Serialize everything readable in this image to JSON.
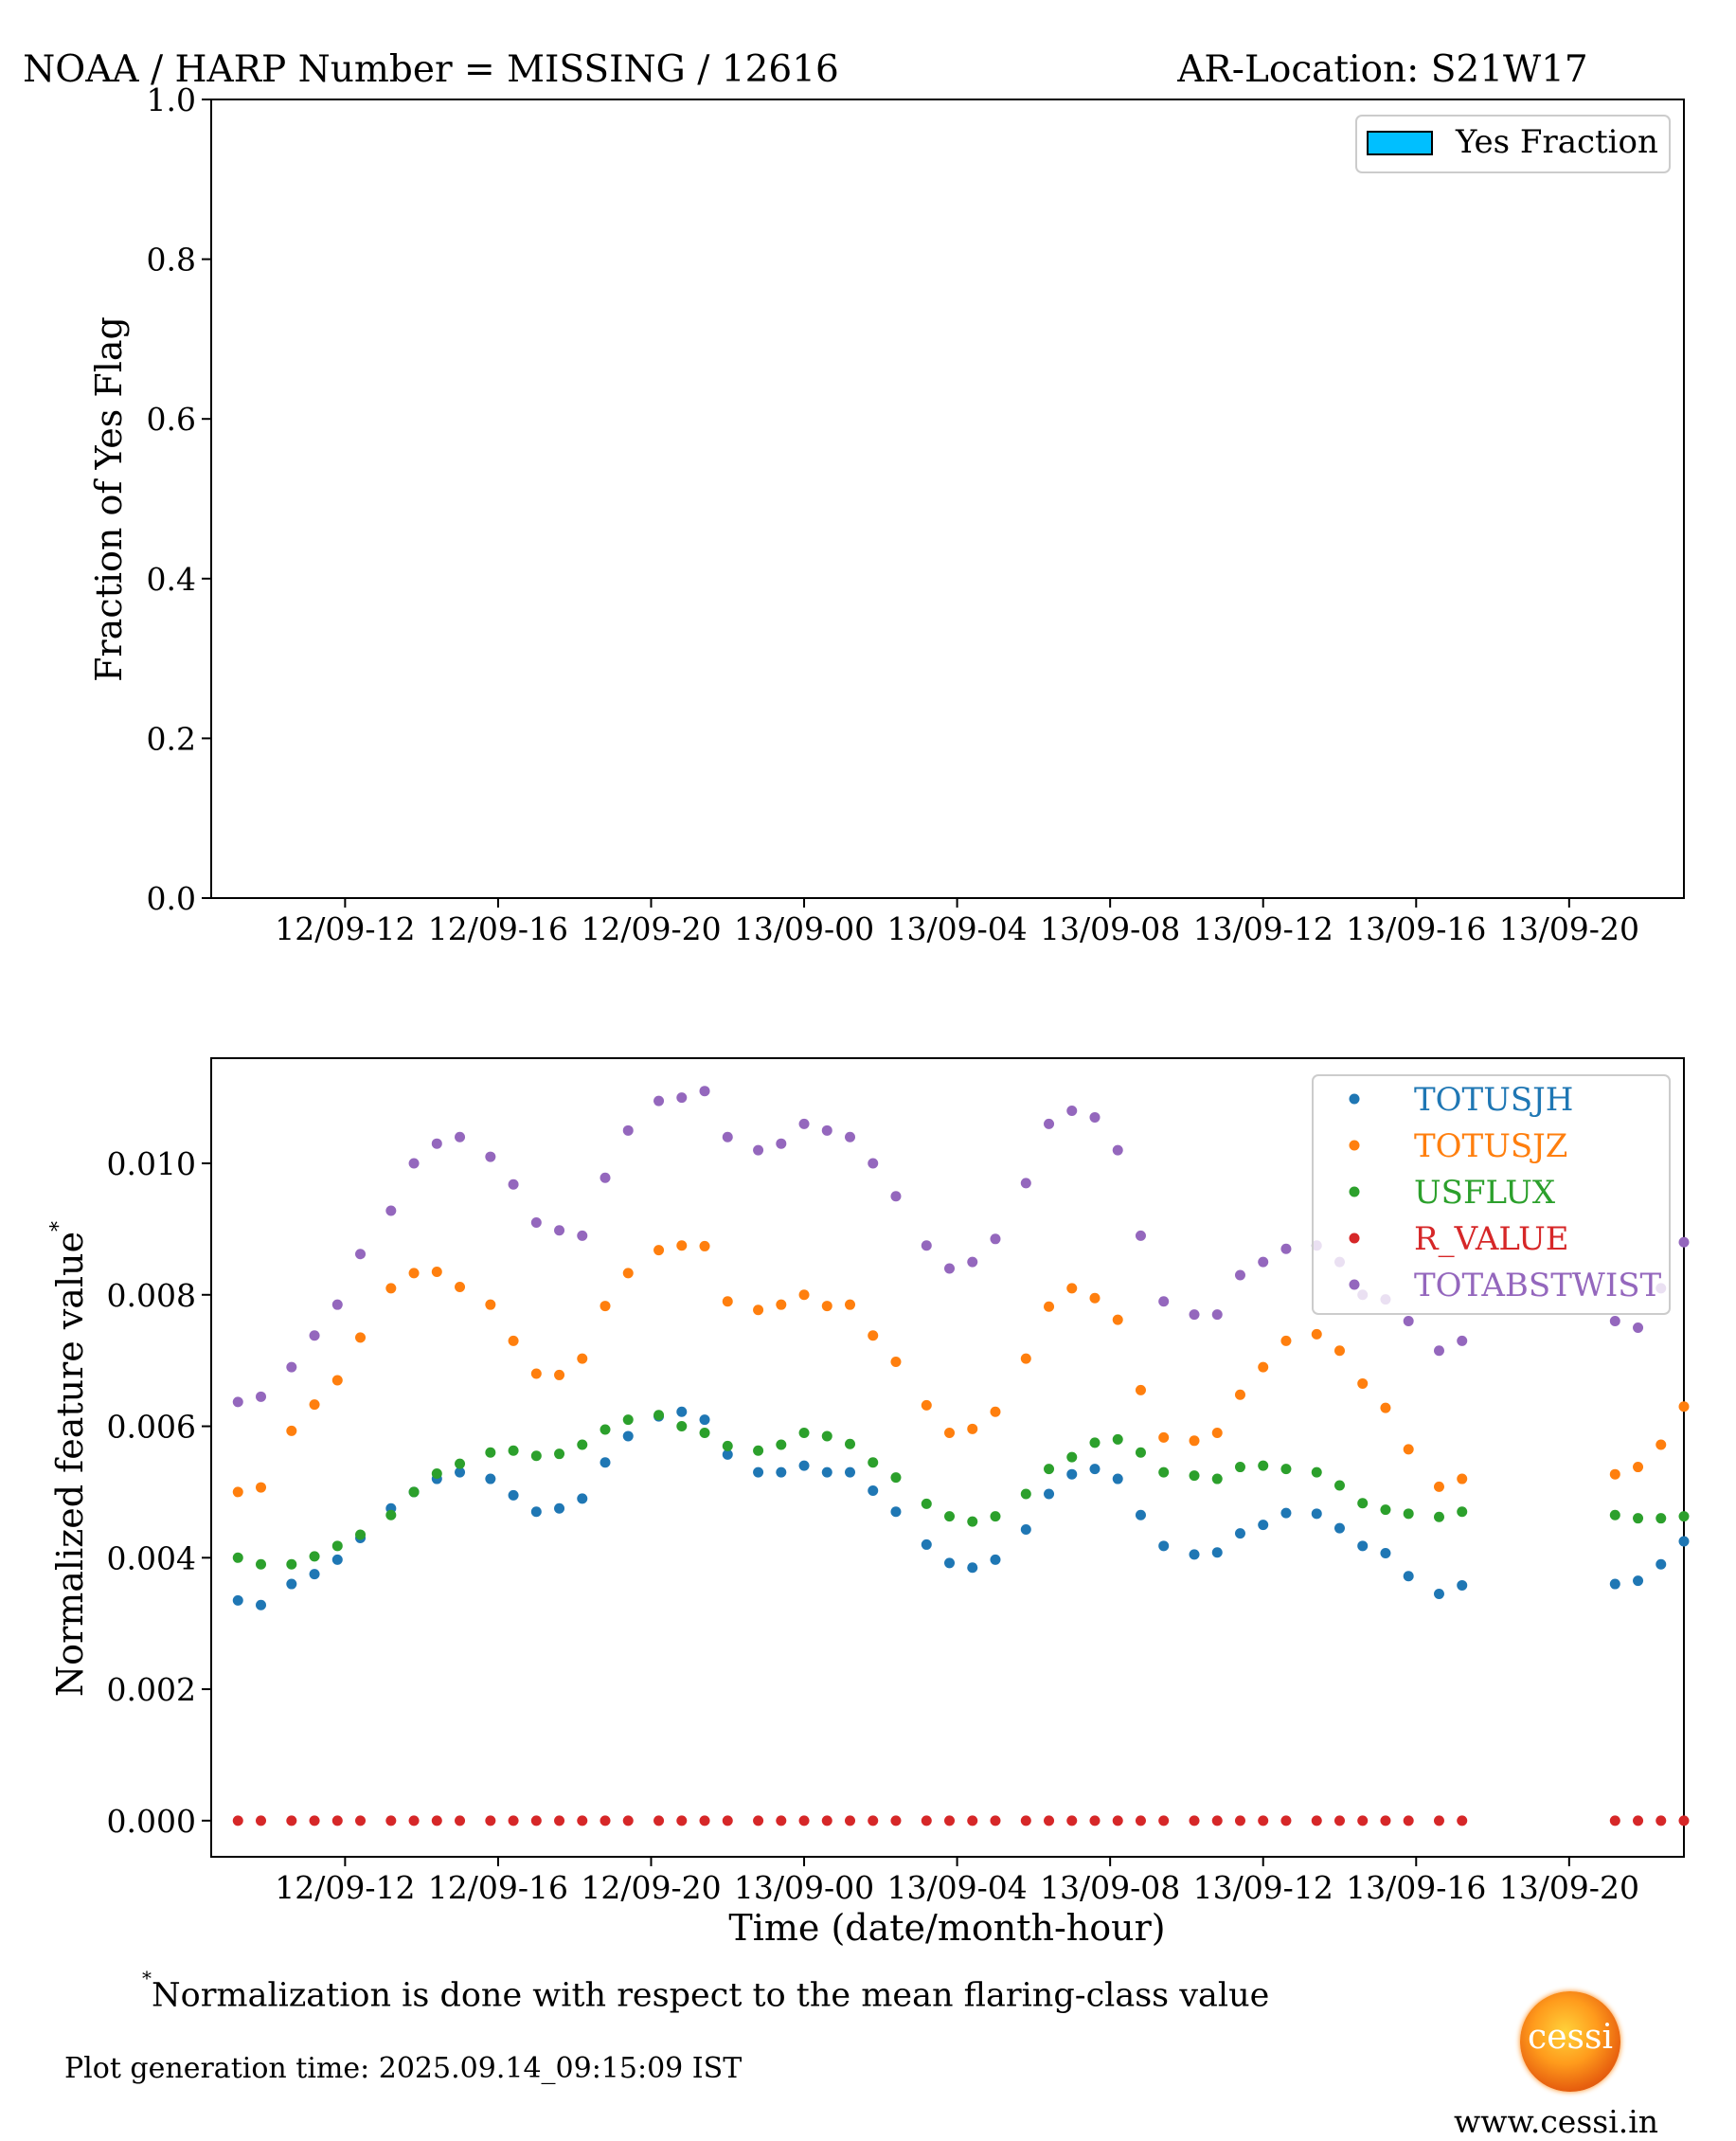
{
  "figure": {
    "title_left": "NOAA / HARP Number = MISSING / 12616",
    "title_right": "AR-Location: S21W17",
    "footnote_marker": "*",
    "footnote_text": "Normalization is done with respect to the mean flaring-class value",
    "generation_time": "Plot generation time: 2025.09.14_09:15:09 IST",
    "logo_text": "cessi",
    "website": "www.cessi.in"
  },
  "chart_data": [
    {
      "type": "bar",
      "ylabel": "Fraction of Yes Flag",
      "xlabel": "",
      "ylim": [
        0,
        1.0
      ],
      "yticks": [
        "0.0",
        "0.2",
        "0.4",
        "0.6",
        "0.8",
        "1.0"
      ],
      "xtick_labels": [
        "12/09-12",
        "12/09-16",
        "12/09-20",
        "13/09-00",
        "13/09-04",
        "13/09-08",
        "13/09-12",
        "13/09-16",
        "13/09-20"
      ],
      "legend": {
        "entries": [
          "Yes Fraction"
        ],
        "placement": "top-right"
      },
      "series": [
        {
          "name": "Yes Fraction",
          "color": "#00bfff",
          "values": []
        }
      ]
    },
    {
      "type": "scatter",
      "ylabel": "Normalized feature value",
      "ylabel_marker": "*",
      "xlabel": "Time (date/month-hour)",
      "ylim": [
        -0.00055,
        0.0116
      ],
      "yticks": [
        "0.000",
        "0.002",
        "0.004",
        "0.006",
        "0.008",
        "0.010"
      ],
      "xtick_labels": [
        "12/09-12",
        "12/09-16",
        "12/09-20",
        "13/09-00",
        "13/09-04",
        "13/09-08",
        "13/09-12",
        "13/09-16",
        "13/09-20"
      ],
      "legend": {
        "placement": "top-right"
      },
      "x_hours": [
        9.2,
        9.8,
        10.6,
        11.2,
        11.8,
        12.4,
        13.2,
        13.8,
        14.4,
        15.0,
        15.8,
        16.4,
        17.0,
        17.6,
        18.2,
        18.8,
        19.4,
        20.2,
        20.8,
        21.4,
        22.0,
        22.8,
        23.4,
        24.0,
        24.6,
        25.2,
        25.8,
        26.4,
        27.2,
        27.8,
        28.4,
        29.0,
        29.8,
        30.4,
        31.0,
        31.6,
        32.2,
        32.8,
        33.4,
        34.2,
        34.8,
        35.4,
        36.0,
        36.6,
        37.4,
        38.0,
        38.6,
        39.2,
        39.8,
        40.6,
        41.2,
        41.8,
        45.2,
        45.8,
        46.4,
        47.0
      ],
      "series": [
        {
          "name": "TOTUSJH",
          "color": "#1f77b4",
          "values": [
            0.00335,
            0.00328,
            0.0036,
            0.00375,
            0.00397,
            0.0043,
            0.00475,
            0.005,
            0.0052,
            0.0053,
            0.0052,
            0.00495,
            0.0047,
            0.00475,
            0.0049,
            0.00545,
            0.00585,
            0.00615,
            0.00622,
            0.0061,
            0.00557,
            0.0053,
            0.0053,
            0.0054,
            0.0053,
            0.0053,
            0.00502,
            0.0047,
            0.0042,
            0.00392,
            0.00385,
            0.00397,
            0.00443,
            0.00497,
            0.00527,
            0.00535,
            0.0052,
            0.00465,
            0.00418,
            0.00405,
            0.00408,
            0.00437,
            0.0045,
            0.00468,
            0.00467,
            0.00445,
            0.00418,
            0.00407,
            0.00372,
            0.00345,
            0.00358,
            null,
            0.0036,
            0.00365,
            0.0039,
            0.00425
          ]
        },
        {
          "name": "TOTUSJZ",
          "color": "#ff7f0e",
          "values": [
            0.005,
            0.00507,
            0.00593,
            0.00633,
            0.0067,
            0.00735,
            0.0081,
            0.00833,
            0.00835,
            0.00812,
            0.00785,
            0.0073,
            0.0068,
            0.00678,
            0.00703,
            0.00783,
            0.00833,
            0.00868,
            0.00875,
            0.00874,
            0.0079,
            0.00777,
            0.00785,
            0.008,
            0.00783,
            0.00785,
            0.00738,
            0.00698,
            0.00632,
            0.0059,
            0.00596,
            0.00622,
            0.00703,
            0.00782,
            0.0081,
            0.00795,
            0.00762,
            0.00655,
            0.00583,
            0.00578,
            0.0059,
            0.00648,
            0.0069,
            0.0073,
            0.0074,
            0.00715,
            0.00665,
            0.00628,
            0.00565,
            0.00508,
            0.0052,
            null,
            0.00527,
            0.00538,
            0.00572,
            0.0063
          ]
        },
        {
          "name": "USFLUX",
          "color": "#2ca02c",
          "values": [
            0.004,
            0.0039,
            0.0039,
            0.00402,
            0.00418,
            0.00435,
            0.00465,
            0.005,
            0.00528,
            0.00543,
            0.0056,
            0.00563,
            0.00555,
            0.00558,
            0.00572,
            0.00595,
            0.0061,
            0.00617,
            0.006,
            0.0059,
            0.0057,
            0.00563,
            0.00572,
            0.0059,
            0.00585,
            0.00573,
            0.00545,
            0.00522,
            0.00482,
            0.00463,
            0.00455,
            0.00463,
            0.00497,
            0.00535,
            0.00553,
            0.00575,
            0.0058,
            0.0056,
            0.0053,
            0.00525,
            0.0052,
            0.00538,
            0.0054,
            0.00535,
            0.0053,
            0.0051,
            0.00483,
            0.00473,
            0.00467,
            0.00462,
            0.0047,
            null,
            0.00465,
            0.0046,
            0.0046,
            0.00463
          ]
        },
        {
          "name": "R_VALUE",
          "color": "#d62728",
          "values": [
            0,
            0,
            0,
            0,
            0,
            0,
            0,
            0,
            0,
            0,
            0,
            0,
            0,
            0,
            0,
            0,
            0,
            0,
            0,
            0,
            0,
            0,
            0,
            0,
            0,
            0,
            0,
            0,
            0,
            0,
            0,
            0,
            0,
            0,
            0,
            0,
            0,
            0,
            0,
            0,
            0,
            0,
            0,
            0,
            0,
            0,
            0,
            0,
            0,
            0,
            0,
            null,
            0,
            0,
            0,
            0
          ]
        },
        {
          "name": "TOTABSTWIST",
          "color": "#9467bd",
          "values": [
            0.00637,
            0.00645,
            0.0069,
            0.00738,
            0.00785,
            0.00862,
            0.00928,
            0.01,
            0.0103,
            0.0104,
            0.0101,
            0.00968,
            0.0091,
            0.00898,
            0.0089,
            0.00978,
            0.0105,
            0.01095,
            0.011,
            0.0111,
            0.0104,
            0.0102,
            0.0103,
            0.0106,
            0.0105,
            0.0104,
            0.01,
            0.0095,
            0.00875,
            0.0084,
            0.0085,
            0.00885,
            0.0097,
            0.0106,
            0.0108,
            0.0107,
            0.0102,
            0.0089,
            0.0079,
            0.0077,
            0.0077,
            0.0083,
            0.0085,
            0.0087,
            0.00875,
            0.0085,
            0.008,
            0.00793,
            0.0076,
            0.00715,
            0.0073,
            null,
            0.0076,
            0.0075,
            0.0081,
            0.0088
          ]
        }
      ]
    }
  ]
}
